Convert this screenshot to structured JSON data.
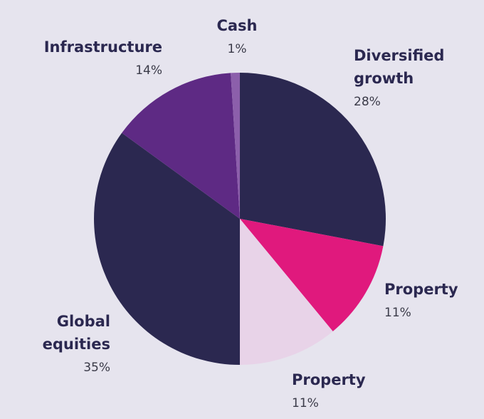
{
  "chart_data": {
    "type": "pie",
    "categories": [
      "Diversified growth",
      "Property",
      "Property",
      "Global equities",
      "Infrastructure",
      "Cash"
    ],
    "values": [
      28,
      11,
      11,
      35,
      14,
      1
    ],
    "value_labels": [
      "28%",
      "11%",
      "11%",
      "35%",
      "14%",
      "1%"
    ],
    "colors": [
      "#2b2850",
      "#e0197d",
      "#e8d3e8",
      "#2b2850",
      "#5e2a84",
      "#8c5fab"
    ]
  }
}
